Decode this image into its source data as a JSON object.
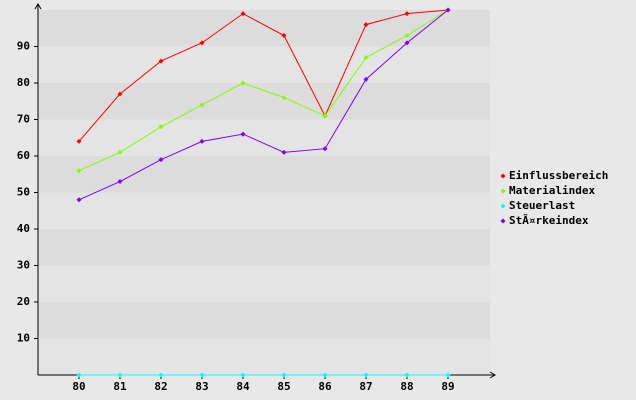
{
  "chart_data": {
    "type": "line",
    "categories": [
      "80",
      "81",
      "82",
      "83",
      "84",
      "85",
      "86",
      "87",
      "88",
      "89"
    ],
    "series": [
      {
        "name": "Einflussbereich",
        "color": "#ff0000",
        "values": [
          64,
          77,
          86,
          91,
          99,
          93,
          71,
          96,
          99,
          100
        ]
      },
      {
        "name": "Materialindex",
        "color": "#80ff00",
        "values": [
          56,
          61,
          68,
          74,
          80,
          76,
          71,
          87,
          93,
          100
        ]
      },
      {
        "name": "Steuerlast",
        "color": "#00ffff",
        "values": [
          0,
          0,
          0,
          0,
          0,
          0,
          0,
          0,
          0,
          0
        ]
      },
      {
        "name": "StÃ¤rkeindex",
        "color": "#8000ff",
        "values": [
          48,
          53,
          59,
          64,
          66,
          61,
          62,
          81,
          91,
          100
        ]
      }
    ],
    "ylim": [
      0,
      100
    ],
    "yticks": [
      10,
      20,
      30,
      40,
      50,
      60,
      70,
      80,
      90
    ],
    "grid": true,
    "legend": "right"
  }
}
